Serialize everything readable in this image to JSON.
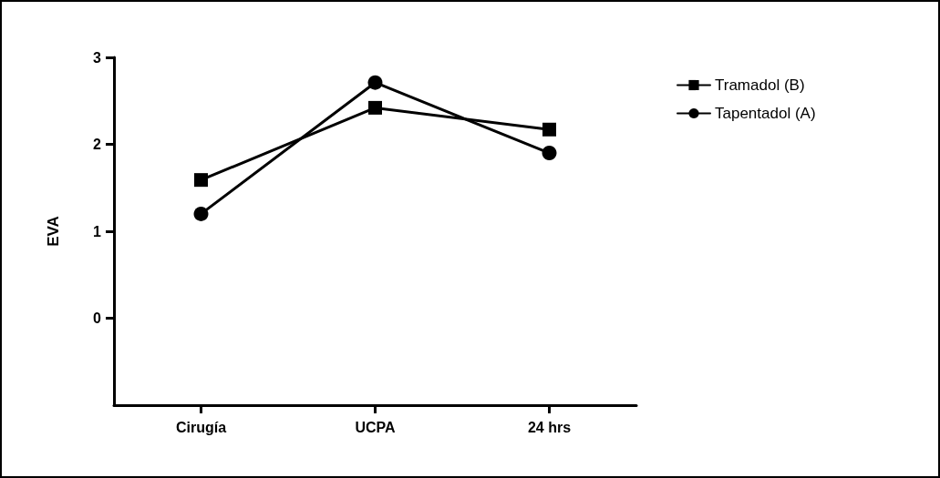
{
  "chart_data": {
    "type": "line",
    "ylabel": "EVA",
    "categories": [
      "Cirugía",
      "UCPA",
      "24 hrs"
    ],
    "series": [
      {
        "name": "Tramadol (B)",
        "color": "#000000",
        "marker": "square",
        "values": [
          1.59,
          2.42,
          2.17
        ]
      },
      {
        "name": "Tapentadol (A)",
        "color": "#000000",
        "marker": "circle",
        "values": [
          1.2,
          2.71,
          1.9
        ]
      }
    ],
    "ylim": [
      -1,
      3
    ],
    "yticks": [
      0,
      1,
      2,
      3
    ],
    "grid": false,
    "legend": "top right",
    "line_style": "solid"
  }
}
